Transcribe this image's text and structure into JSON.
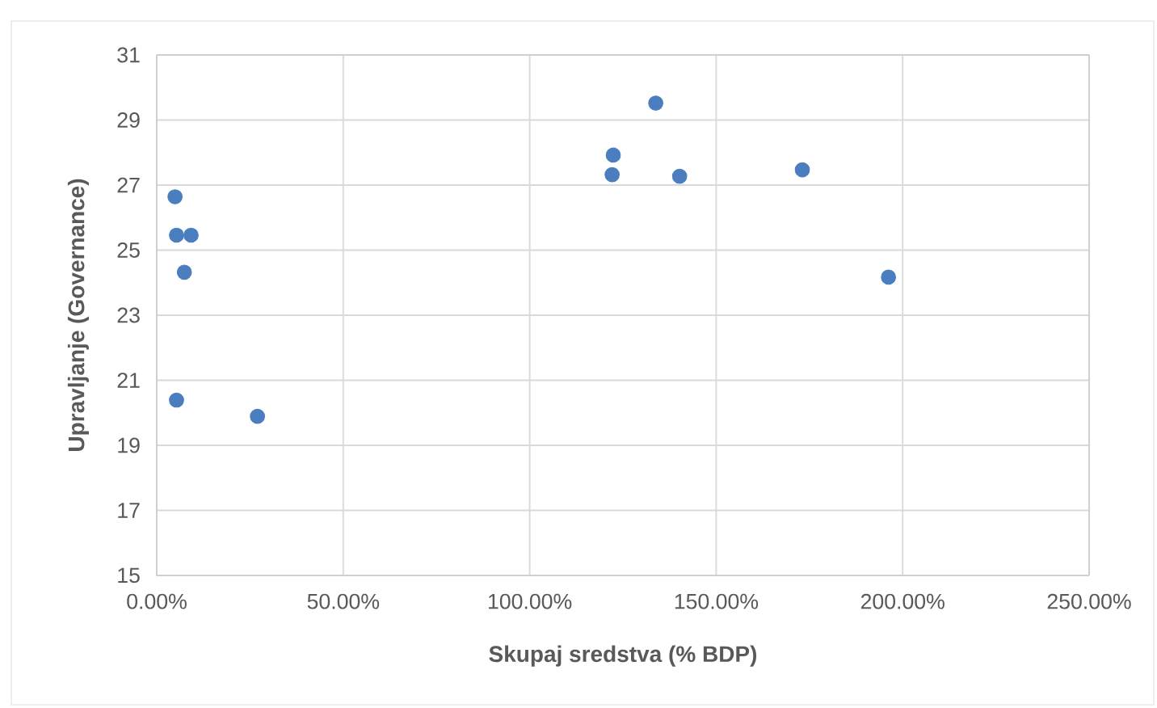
{
  "chart_data": {
    "type": "scatter",
    "xlabel": "Skupaj sredstva (% BDP)",
    "ylabel": "Upravljanje (Governance)",
    "x": [
      4.9,
      5.3,
      9.2,
      7.4,
      5.3,
      27.0,
      133.8,
      122.4,
      122.1,
      140.2,
      173.1,
      196.2
    ],
    "values": [
      26.64,
      25.46,
      25.46,
      24.32,
      20.39,
      19.89,
      29.52,
      27.92,
      27.32,
      27.27,
      27.47,
      24.17
    ],
    "color": "#4a7ebf",
    "xlim": [
      0,
      250
    ],
    "xticks": [
      {
        "value": 0,
        "label": "0.00%"
      },
      {
        "value": 50,
        "label": "50.00%"
      },
      {
        "value": 100,
        "label": "100.00%"
      },
      {
        "value": 150,
        "label": "150.00%"
      },
      {
        "value": 200,
        "label": "200.00%"
      },
      {
        "value": 250,
        "label": "250.00%"
      }
    ],
    "ylim": [
      15,
      31
    ],
    "yticks": [
      15,
      17,
      19,
      21,
      23,
      25,
      27,
      29,
      31
    ],
    "grid": true
  }
}
